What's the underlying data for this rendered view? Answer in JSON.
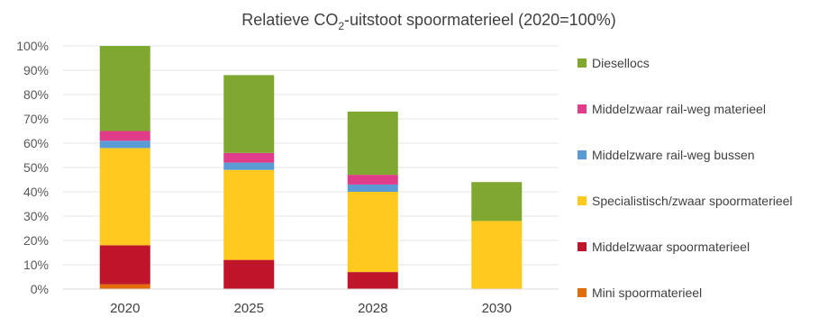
{
  "chart_data": {
    "type": "bar",
    "stacked": true,
    "title": {
      "prefix": "Relatieve CO",
      "subscript": "2",
      "suffix": "-uitstoot spoormaterieel (2020=100%)"
    },
    "xlabel": "",
    "ylabel": "",
    "ylim": [
      0,
      100
    ],
    "y_ticks": [
      "0%",
      "10%",
      "20%",
      "30%",
      "40%",
      "50%",
      "60%",
      "70%",
      "80%",
      "90%",
      "100%"
    ],
    "grid": true,
    "legend_position": "right",
    "categories": [
      "2020",
      "2025",
      "2028",
      "2030"
    ],
    "series": [
      {
        "name": "Mini spoormaterieel",
        "color": "#E36C0A",
        "values": [
          2,
          0,
          0,
          0
        ]
      },
      {
        "name": "Middelzwaar spoormaterieel",
        "color": "#C0142B",
        "values": [
          16,
          12,
          7,
          0
        ]
      },
      {
        "name": "Specialistisch/zwaar spoormaterieel",
        "color": "#FFC91E",
        "values": [
          40,
          37,
          33,
          28
        ]
      },
      {
        "name": "Middelzware rail-weg bussen",
        "color": "#5B9BD5",
        "values": [
          3,
          3,
          3,
          0
        ]
      },
      {
        "name": "Middelzwaar rail-weg materieel",
        "color": "#E03C8A",
        "values": [
          4,
          4,
          4,
          0
        ]
      },
      {
        "name": "Diesellocs",
        "color": "#7EA82F",
        "values": [
          35,
          32,
          26,
          16
        ]
      }
    ]
  }
}
